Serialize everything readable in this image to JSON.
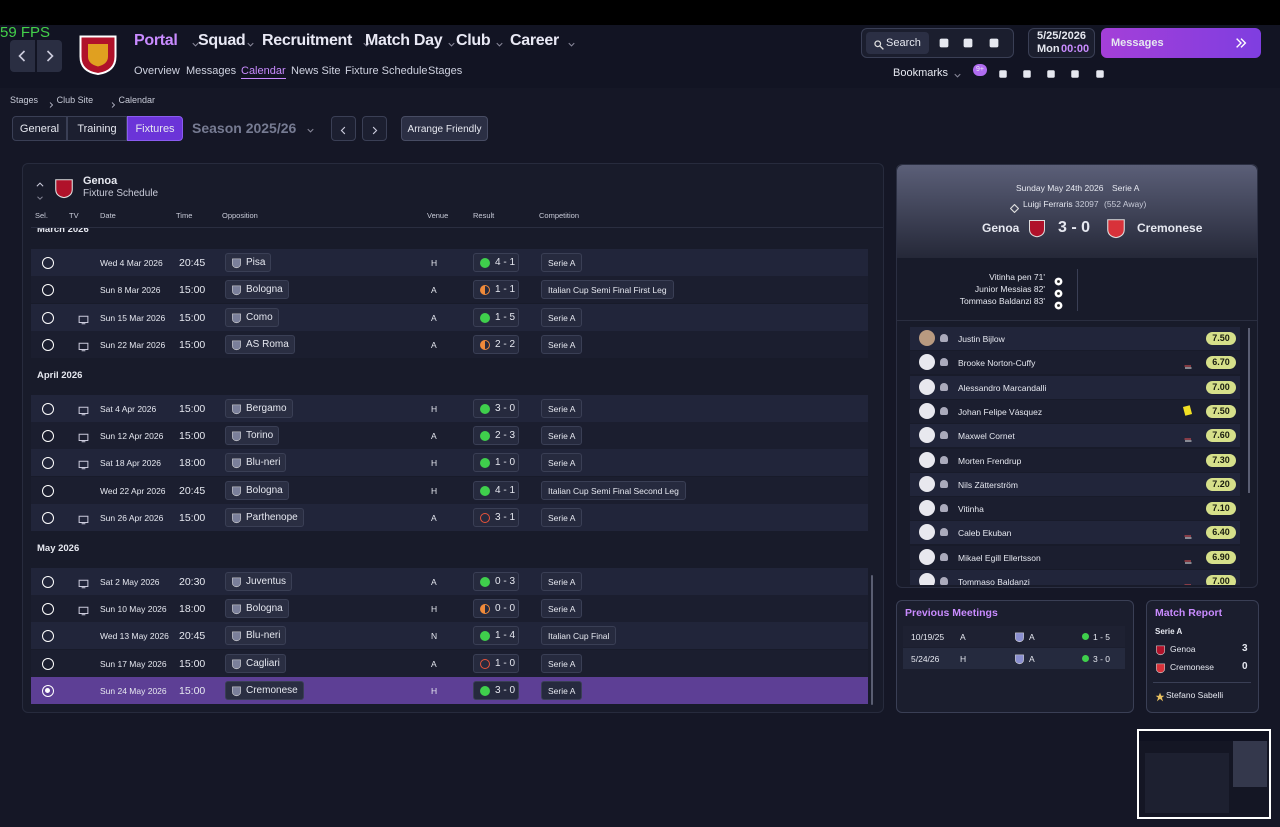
{
  "fps": "59 FPS",
  "nav": {
    "main": [
      "Portal",
      "Squad",
      "Recruitment",
      "Match Day",
      "Club",
      "Career"
    ],
    "sub": [
      "Overview",
      "Messages",
      "Calendar",
      "News Site",
      "Fixture Schedule",
      "Stages"
    ],
    "active_sub": 2
  },
  "toolbar": {
    "search": "Search",
    "date": "5/25/2026",
    "day": "Mon",
    "time": "00:00",
    "messages": "Messages",
    "bookmarks": "Bookmarks",
    "badge": "9+"
  },
  "breadcrumb": [
    "Stages",
    "Club Site",
    "Calendar"
  ],
  "tabs": [
    "General",
    "Training",
    "Fixtures"
  ],
  "active_tab": 2,
  "season": "Season 2025/26",
  "arrange": "Arrange Friendly",
  "schedule": {
    "team": "Genoa",
    "subtitle": "Fixture Schedule",
    "columns": [
      "Sel.",
      "TV",
      "Date",
      "Time",
      "Opposition",
      "Venue",
      "Result",
      "Competition"
    ],
    "groups": [
      {
        "month": "March 2026",
        "fixtures": [
          {
            "tv": false,
            "date": "Wed 4 Mar 2026",
            "time": "20:45",
            "opposition": "Pisa",
            "venue": "H",
            "result": "4 - 1",
            "outcome": "win",
            "competition": "Serie A"
          },
          {
            "tv": false,
            "date": "Sun 8 Mar 2026",
            "time": "15:00",
            "opposition": "Bologna",
            "venue": "A",
            "result": "1 - 1",
            "outcome": "draw",
            "competition": "Italian Cup Semi Final First Leg"
          },
          {
            "tv": true,
            "date": "Sun 15 Mar 2026",
            "time": "15:00",
            "opposition": "Como",
            "venue": "A",
            "result": "1 - 5",
            "outcome": "win",
            "competition": "Serie A"
          },
          {
            "tv": true,
            "date": "Sun 22 Mar 2026",
            "time": "15:00",
            "opposition": "AS Roma",
            "venue": "A",
            "result": "2 - 2",
            "outcome": "draw",
            "competition": "Serie A"
          }
        ]
      },
      {
        "month": "April 2026",
        "fixtures": [
          {
            "tv": true,
            "date": "Sat 4 Apr 2026",
            "time": "15:00",
            "opposition": "Bergamo",
            "venue": "H",
            "result": "3 - 0",
            "outcome": "win",
            "competition": "Serie A"
          },
          {
            "tv": true,
            "date": "Sun 12 Apr 2026",
            "time": "15:00",
            "opposition": "Torino",
            "venue": "A",
            "result": "2 - 3",
            "outcome": "win",
            "competition": "Serie A"
          },
          {
            "tv": true,
            "date": "Sat 18 Apr 2026",
            "time": "18:00",
            "opposition": "Blu-neri",
            "venue": "H",
            "result": "1 - 0",
            "outcome": "win",
            "competition": "Serie A"
          },
          {
            "tv": false,
            "date": "Wed 22 Apr 2026",
            "time": "20:45",
            "opposition": "Bologna",
            "venue": "H",
            "result": "4 - 1",
            "outcome": "win",
            "competition": "Italian Cup Semi Final Second Leg"
          },
          {
            "tv": true,
            "date": "Sun 26 Apr 2026",
            "time": "15:00",
            "opposition": "Parthenope",
            "venue": "A",
            "result": "3 - 1",
            "outcome": "loss",
            "competition": "Serie A"
          }
        ]
      },
      {
        "month": "May 2026",
        "fixtures": [
          {
            "tv": true,
            "date": "Sat 2 May 2026",
            "time": "20:30",
            "opposition": "Juventus",
            "venue": "A",
            "result": "0 - 3",
            "outcome": "win",
            "competition": "Serie A"
          },
          {
            "tv": true,
            "date": "Sun 10 May 2026",
            "time": "18:00",
            "opposition": "Bologna",
            "venue": "H",
            "result": "0 - 0",
            "outcome": "draw",
            "competition": "Serie A"
          },
          {
            "tv": false,
            "date": "Wed 13 May 2026",
            "time": "20:45",
            "opposition": "Blu-neri",
            "venue": "N",
            "result": "1 - 4",
            "outcome": "win",
            "competition": "Italian Cup Final"
          },
          {
            "tv": false,
            "date": "Sun 17 May 2026",
            "time": "15:00",
            "opposition": "Cagliari",
            "venue": "A",
            "result": "1 - 0",
            "outcome": "loss",
            "competition": "Serie A"
          },
          {
            "tv": false,
            "date": "Sun 24 May 2026",
            "time": "15:00",
            "opposition": "Cremonese",
            "venue": "H",
            "result": "3 - 0",
            "outcome": "win",
            "competition": "Serie A",
            "selected": true
          }
        ]
      }
    ]
  },
  "match": {
    "date": "Sunday May 24th 2026",
    "competition": "Serie A",
    "stadium": "Luigi Ferraris",
    "attendance": "32097",
    "away_fans": "(552 Away)",
    "home": "Genoa",
    "score": "3 - 0",
    "away": "Cremonese",
    "scorers": [
      "Vitinha pen 71'",
      "Junior Messias 82'",
      "Tommaso Baldanzi 83'"
    ],
    "players": [
      {
        "name": "Justin Bijlow",
        "rating": "7.50",
        "event": ""
      },
      {
        "name": "Brooke Norton-Cuffy",
        "rating": "6.70",
        "event": "sub"
      },
      {
        "name": "Alessandro Marcandalli",
        "rating": "7.00",
        "event": ""
      },
      {
        "name": "Johan Felipe Vásquez",
        "rating": "7.50",
        "event": "yellow"
      },
      {
        "name": "Maxwel Cornet",
        "rating": "7.60",
        "event": "sub"
      },
      {
        "name": "Morten Frendrup",
        "rating": "7.30",
        "event": ""
      },
      {
        "name": "Nils Zätterström",
        "rating": "7.20",
        "event": ""
      },
      {
        "name": "Vitinha",
        "rating": "7.10",
        "event": ""
      },
      {
        "name": "Caleb Ekuban",
        "rating": "6.40",
        "event": "sub"
      },
      {
        "name": "Mikael Egill Ellertsson",
        "rating": "6.90",
        "event": "sub"
      },
      {
        "name": "Tommaso Baldanzi",
        "rating": "7.00",
        "event": "sub"
      }
    ]
  },
  "previous_meetings": {
    "title": "Previous Meetings",
    "rows": [
      [
        "10/19/25",
        "A",
        "A",
        "1 - 5"
      ],
      [
        "5/24/26",
        "H",
        "A",
        "3 - 0"
      ]
    ]
  },
  "match_report": {
    "title": "Match Report",
    "competition": "Serie A",
    "teams": [
      [
        "Genoa",
        "3"
      ],
      [
        "Cremonese",
        "0"
      ]
    ],
    "player_of_match": "Stefano Sabelli"
  }
}
